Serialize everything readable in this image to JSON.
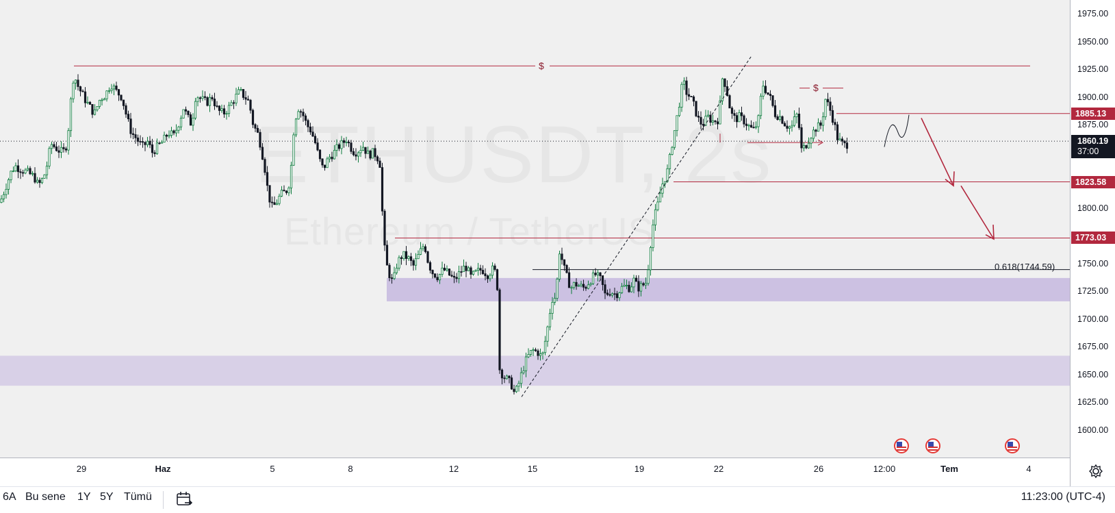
{
  "symbol": {
    "ticker": "ETHUSDT, 2s",
    "description": "Ethereum / TetherUS"
  },
  "chart_data": {
    "type": "candlestick",
    "y_axis": {
      "min": 1590,
      "max": 1985,
      "ticks": [
        "1975.00",
        "1950.00",
        "1925.00",
        "1900.00",
        "1875.00",
        "1850.00",
        "1825.00",
        "1800.00",
        "1775.00",
        "1750.00",
        "1725.00",
        "1700.00",
        "1675.00",
        "1650.00",
        "1625.00",
        "1600.00"
      ]
    },
    "x_axis": {
      "ticks": [
        {
          "label": "29",
          "bold": false
        },
        {
          "label": "Haz",
          "bold": true
        },
        {
          "label": "5",
          "bold": false
        },
        {
          "label": "8",
          "bold": false
        },
        {
          "label": "12",
          "bold": false
        },
        {
          "label": "15",
          "bold": false
        },
        {
          "label": "19",
          "bold": false
        },
        {
          "label": "22",
          "bold": false
        },
        {
          "label": "26",
          "bold": false
        },
        {
          "label": "12:00",
          "bold": false
        },
        {
          "label": "Tem",
          "bold": true
        },
        {
          "label": "4",
          "bold": false
        }
      ]
    },
    "path_points": [
      [
        0,
        1805
      ],
      [
        6,
        1815
      ],
      [
        10,
        1822
      ],
      [
        16,
        1832
      ],
      [
        22,
        1838
      ],
      [
        30,
        1835
      ],
      [
        40,
        1832
      ],
      [
        50,
        1828
      ],
      [
        56,
        1820
      ],
      [
        64,
        1828
      ],
      [
        70,
        1842
      ],
      [
        74,
        1858
      ],
      [
        80,
        1855
      ],
      [
        86,
        1852
      ],
      [
        92,
        1850
      ],
      [
        98,
        1858
      ],
      [
        104,
        1900
      ],
      [
        108,
        1922
      ],
      [
        112,
        1912
      ],
      [
        118,
        1905
      ],
      [
        124,
        1898
      ],
      [
        130,
        1892
      ],
      [
        138,
        1885
      ],
      [
        146,
        1898
      ],
      [
        154,
        1902
      ],
      [
        162,
        1912
      ],
      [
        170,
        1905
      ],
      [
        178,
        1900
      ],
      [
        186,
        1880
      ],
      [
        192,
        1868
      ],
      [
        200,
        1862
      ],
      [
        208,
        1855
      ],
      [
        216,
        1860
      ],
      [
        222,
        1850
      ],
      [
        230,
        1855
      ],
      [
        238,
        1860
      ],
      [
        246,
        1868
      ],
      [
        254,
        1865
      ],
      [
        262,
        1878
      ],
      [
        268,
        1890
      ],
      [
        274,
        1882
      ],
      [
        280,
        1875
      ],
      [
        286,
        1902
      ],
      [
        294,
        1898
      ],
      [
        302,
        1895
      ],
      [
        310,
        1900
      ],
      [
        318,
        1888
      ],
      [
        326,
        1885
      ],
      [
        334,
        1890
      ],
      [
        342,
        1898
      ],
      [
        350,
        1905
      ],
      [
        358,
        1900
      ],
      [
        364,
        1895
      ],
      [
        370,
        1875
      ],
      [
        378,
        1865
      ],
      [
        386,
        1840
      ],
      [
        392,
        1812
      ],
      [
        398,
        1800
      ],
      [
        404,
        1805
      ],
      [
        410,
        1812
      ],
      [
        418,
        1815
      ],
      [
        424,
        1825
      ],
      [
        430,
        1878
      ],
      [
        436,
        1890
      ],
      [
        442,
        1885
      ],
      [
        448,
        1875
      ],
      [
        454,
        1870
      ],
      [
        460,
        1860
      ],
      [
        466,
        1845
      ],
      [
        472,
        1835
      ],
      [
        480,
        1845
      ],
      [
        488,
        1850
      ],
      [
        494,
        1855
      ],
      [
        500,
        1858
      ],
      [
        506,
        1862
      ],
      [
        512,
        1855
      ],
      [
        518,
        1850
      ],
      [
        524,
        1852
      ],
      [
        530,
        1856
      ],
      [
        538,
        1848
      ],
      [
        546,
        1850
      ],
      [
        552,
        1845
      ],
      [
        556,
        1838
      ],
      [
        560,
        1772
      ],
      [
        566,
        1745
      ],
      [
        574,
        1732
      ],
      [
        580,
        1750
      ],
      [
        588,
        1758
      ],
      [
        596,
        1755
      ],
      [
        604,
        1748
      ],
      [
        612,
        1758
      ],
      [
        620,
        1768
      ],
      [
        626,
        1750
      ],
      [
        632,
        1742
      ],
      [
        640,
        1738
      ],
      [
        648,
        1745
      ],
      [
        656,
        1740
      ],
      [
        664,
        1735
      ],
      [
        672,
        1742
      ],
      [
        680,
        1748
      ],
      [
        688,
        1738
      ],
      [
        696,
        1742
      ],
      [
        704,
        1745
      ],
      [
        712,
        1740
      ],
      [
        720,
        1745
      ],
      [
        726,
        1740
      ],
      [
        730,
        1655
      ],
      [
        736,
        1648
      ],
      [
        742,
        1645
      ],
      [
        748,
        1640
      ],
      [
        752,
        1632
      ],
      [
        758,
        1642
      ],
      [
        764,
        1655
      ],
      [
        770,
        1665
      ],
      [
        778,
        1672
      ],
      [
        786,
        1670
      ],
      [
        792,
        1665
      ],
      [
        798,
        1685
      ],
      [
        802,
        1700
      ],
      [
        806,
        1718
      ],
      [
        812,
        1720
      ],
      [
        818,
        1765
      ],
      [
        822,
        1750
      ],
      [
        828,
        1738
      ],
      [
        834,
        1728
      ],
      [
        840,
        1732
      ],
      [
        846,
        1730
      ],
      [
        854,
        1728
      ],
      [
        862,
        1735
      ],
      [
        870,
        1740
      ],
      [
        878,
        1735
      ],
      [
        884,
        1722
      ],
      [
        892,
        1725
      ],
      [
        900,
        1722
      ],
      [
        908,
        1728
      ],
      [
        914,
        1730
      ],
      [
        920,
        1728
      ],
      [
        926,
        1735
      ],
      [
        932,
        1728
      ],
      [
        938,
        1730
      ],
      [
        944,
        1733
      ],
      [
        948,
        1752
      ],
      [
        952,
        1778
      ],
      [
        956,
        1792
      ],
      [
        960,
        1800
      ],
      [
        964,
        1812
      ],
      [
        968,
        1822
      ],
      [
        972,
        1828
      ],
      [
        976,
        1835
      ],
      [
        982,
        1858
      ],
      [
        988,
        1878
      ],
      [
        994,
        1900
      ],
      [
        998,
        1915
      ],
      [
        1002,
        1905
      ],
      [
        1008,
        1900
      ],
      [
        1014,
        1892
      ],
      [
        1020,
        1880
      ],
      [
        1026,
        1875
      ],
      [
        1034,
        1882
      ],
      [
        1042,
        1878
      ],
      [
        1050,
        1880
      ],
      [
        1056,
        1920
      ],
      [
        1062,
        1905
      ],
      [
        1068,
        1885
      ],
      [
        1074,
        1880
      ],
      [
        1080,
        1882
      ],
      [
        1088,
        1878
      ],
      [
        1096,
        1872
      ],
      [
        1102,
        1870
      ],
      [
        1108,
        1880
      ],
      [
        1114,
        1912
      ],
      [
        1120,
        1905
      ],
      [
        1126,
        1898
      ],
      [
        1132,
        1885
      ],
      [
        1140,
        1882
      ],
      [
        1148,
        1875
      ],
      [
        1156,
        1872
      ],
      [
        1162,
        1882
      ],
      [
        1166,
        1885
      ],
      [
        1170,
        1852
      ],
      [
        1176,
        1855
      ],
      [
        1184,
        1865
      ],
      [
        1192,
        1872
      ],
      [
        1200,
        1875
      ],
      [
        1206,
        1898
      ],
      [
        1212,
        1890
      ],
      [
        1218,
        1878
      ],
      [
        1224,
        1862
      ],
      [
        1230,
        1858
      ],
      [
        1236,
        1856
      ],
      [
        1240,
        1860
      ]
    ],
    "price_tags": [
      {
        "label": "1885.13",
        "value": 1885.13
      },
      {
        "label": "1823.58",
        "value": 1823.58
      },
      {
        "label": "1773.03",
        "value": 1773.03
      }
    ],
    "current_price": {
      "label": "1860.19",
      "value": 1860.19,
      "countdown": "37:00"
    },
    "fib_level": {
      "label": "0.618(1744.59)",
      "value": 1744.59
    },
    "zones": [
      {
        "name": "upper-demand-zone",
        "from": 1716,
        "to": 1737,
        "color": "#ccc1e2"
      },
      {
        "name": "lower-demand-zone",
        "from": 1640,
        "to": 1667,
        "color": "#d8d0e7"
      }
    ],
    "liquidity_marks": [
      {
        "label": "$"
      },
      {
        "label": "$"
      }
    ]
  },
  "colors": {
    "accent": "#b2283e",
    "up": "#0b7a3b",
    "down": "#131722",
    "zone": "#ccc1e2"
  },
  "bottom_bar": {
    "ranges": [
      "6A",
      "Bu sene",
      "1Y",
      "5Y",
      "Tümü"
    ],
    "clock": "11:23:00 (UTC-4)"
  },
  "icons": {
    "calendar": "calendar-icon",
    "settings": "settings-icon",
    "flag": "us-flag-icon"
  }
}
